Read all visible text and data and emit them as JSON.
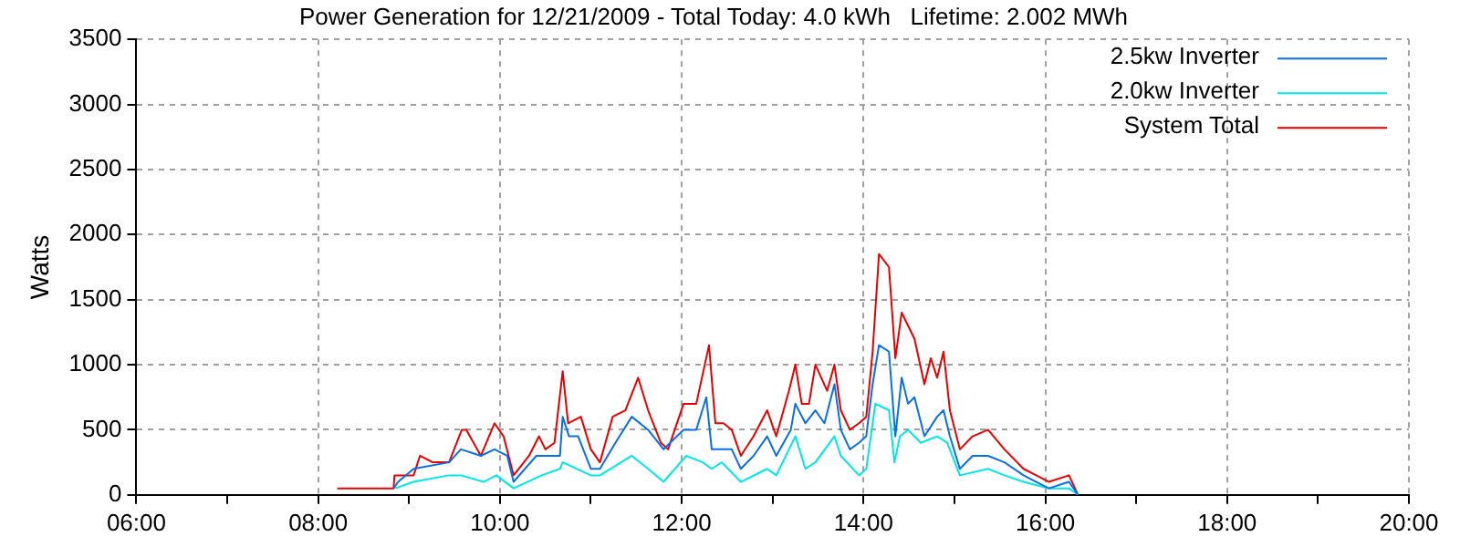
{
  "chart_data": {
    "type": "line",
    "title": "Power Generation for 12/21/2009 - Total Today: 4.0 kWh   Lifetime: 2.002 MWh",
    "ylabel": "Watts",
    "xlim": [
      6,
      20
    ],
    "xticks": [
      {
        "value": 6,
        "label": "06:00"
      },
      {
        "value": 7,
        "label": null
      },
      {
        "value": 8,
        "label": "08:00"
      },
      {
        "value": 9,
        "label": null
      },
      {
        "value": 10,
        "label": "10:00"
      },
      {
        "value": 11,
        "label": null
      },
      {
        "value": 12,
        "label": "12:00"
      },
      {
        "value": 13,
        "label": null
      },
      {
        "value": 14,
        "label": "14:00"
      },
      {
        "value": 15,
        "label": null
      },
      {
        "value": 16,
        "label": "16:00"
      },
      {
        "value": 17,
        "label": null
      },
      {
        "value": 18,
        "label": "18:00"
      },
      {
        "value": 19,
        "label": null
      },
      {
        "value": 20,
        "label": "20:00"
      }
    ],
    "ylim": [
      0,
      3500
    ],
    "yticks": [
      0,
      500,
      1000,
      1500,
      2000,
      2500,
      3000,
      3500
    ],
    "grid": true,
    "legend": "top right",
    "marker": "none",
    "line_style": "solid",
    "series": [
      {
        "name": "2.5kw Inverter",
        "color": "#0a6ee6",
        "x": [
          8.83,
          8.88,
          9.05,
          9.44,
          9.57,
          9.79,
          9.94,
          10.08,
          10.15,
          10.4,
          10.66,
          10.69,
          10.76,
          10.86,
          11.0,
          11.1,
          11.27,
          11.45,
          11.63,
          11.8,
          12.02,
          12.16,
          12.27,
          12.33,
          12.44,
          12.55,
          12.65,
          12.79,
          12.94,
          13.04,
          13.2,
          13.25,
          13.36,
          13.47,
          13.57,
          13.68,
          13.75,
          13.85,
          13.95,
          14.03,
          14.1,
          14.17,
          14.28,
          14.35,
          14.42,
          14.49,
          14.56,
          14.67,
          14.81,
          14.88,
          14.95,
          15.06,
          15.2,
          15.37,
          15.55,
          15.76,
          15.9,
          16.04,
          16.26,
          16.36
        ],
        "values": [
          50,
          100,
          200,
          250,
          350,
          300,
          350,
          300,
          100,
          300,
          300,
          600,
          450,
          450,
          200,
          200,
          400,
          600,
          500,
          350,
          500,
          500,
          750,
          350,
          350,
          350,
          200,
          300,
          450,
          300,
          500,
          700,
          550,
          650,
          550,
          850,
          500,
          350,
          400,
          450,
          850,
          1150,
          1100,
          450,
          900,
          700,
          750,
          450,
          600,
          650,
          450,
          200,
          300,
          300,
          250,
          150,
          100,
          50,
          100,
          0
        ]
      },
      {
        "name": "2.0kw Inverter",
        "color": "#00e6e6",
        "x": [
          8.85,
          9.05,
          9.44,
          9.57,
          9.82,
          9.96,
          10.15,
          10.46,
          10.66,
          10.69,
          11.0,
          11.1,
          11.45,
          11.63,
          11.8,
          12.05,
          12.23,
          12.33,
          12.44,
          12.65,
          12.94,
          13.04,
          13.25,
          13.36,
          13.47,
          13.68,
          13.75,
          13.95,
          14.03,
          14.13,
          14.28,
          14.34,
          14.4,
          14.49,
          14.63,
          14.81,
          14.92,
          15.06,
          15.37,
          15.55,
          15.76,
          16.04,
          16.26,
          16.36
        ],
        "values": [
          50,
          100,
          150,
          150,
          100,
          150,
          50,
          150,
          200,
          250,
          150,
          150,
          300,
          200,
          100,
          300,
          250,
          200,
          250,
          100,
          200,
          150,
          450,
          200,
          250,
          450,
          300,
          150,
          200,
          700,
          650,
          250,
          450,
          500,
          400,
          450,
          400,
          150,
          200,
          150,
          100,
          50,
          50,
          0
        ]
      },
      {
        "name": "System Total",
        "color": "#e60000",
        "x": [
          8.21,
          8.5,
          8.83,
          8.84,
          9.05,
          9.12,
          9.26,
          9.44,
          9.58,
          9.63,
          9.79,
          9.94,
          10.04,
          10.15,
          10.32,
          10.43,
          10.5,
          10.6,
          10.69,
          10.75,
          10.89,
          11.0,
          11.1,
          11.24,
          11.38,
          11.52,
          11.63,
          11.77,
          11.85,
          12.02,
          12.16,
          12.3,
          12.37,
          12.46,
          12.55,
          12.65,
          12.79,
          12.94,
          13.04,
          13.18,
          13.25,
          13.32,
          13.4,
          13.47,
          13.6,
          13.68,
          13.75,
          13.85,
          13.95,
          14.03,
          14.1,
          14.17,
          14.28,
          14.35,
          14.42,
          14.49,
          14.56,
          14.67,
          14.74,
          14.81,
          14.88,
          14.95,
          15.06,
          15.2,
          15.37,
          15.55,
          15.76,
          15.9,
          16.04,
          16.26,
          16.36
        ],
        "values": [
          50,
          50,
          50,
          150,
          150,
          300,
          250,
          250,
          500,
          500,
          300,
          550,
          450,
          150,
          300,
          450,
          350,
          400,
          950,
          550,
          600,
          350,
          250,
          600,
          650,
          900,
          650,
          400,
          350,
          700,
          700,
          1150,
          550,
          550,
          500,
          300,
          450,
          650,
          450,
          800,
          1000,
          700,
          700,
          1000,
          800,
          1000,
          650,
          500,
          550,
          600,
          1100,
          1850,
          1750,
          1050,
          1400,
          1300,
          1200,
          850,
          1050,
          900,
          1100,
          650,
          350,
          450,
          500,
          350,
          200,
          150,
          100,
          150,
          0
        ]
      }
    ]
  }
}
